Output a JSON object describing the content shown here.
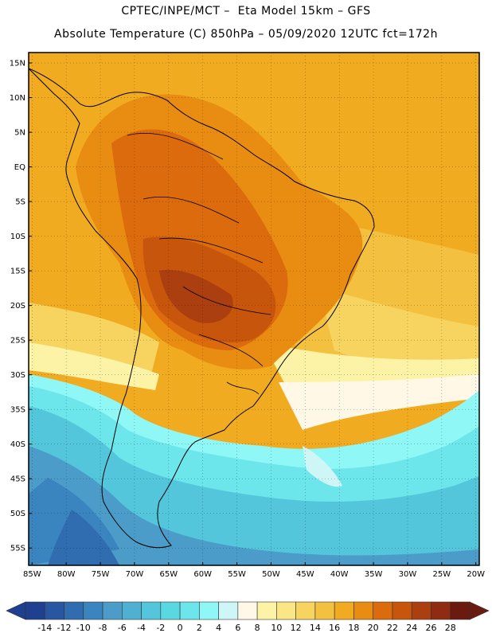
{
  "header": {
    "line1": "CPTEC/INPE/MCT –  Eta Model 15km – GFS",
    "line2": "Absolute Temperature (C) 850hPa – 05/09/2020 12UTC fct=172h"
  },
  "map": {
    "lat_labels": [
      "15N",
      "10N",
      "5N",
      "EQ",
      "5S",
      "10S",
      "15S",
      "20S",
      "25S",
      "30S",
      "35S",
      "40S",
      "45S",
      "50S",
      "55S"
    ],
    "lon_labels": [
      "85W",
      "80W",
      "75W",
      "70W",
      "65W",
      "60W",
      "55W",
      "50W",
      "45W",
      "40W",
      "35W",
      "30W",
      "25W",
      "20W"
    ],
    "lat_values": [
      15,
      10,
      5,
      0,
      -5,
      -10,
      -15,
      -20,
      -25,
      -30,
      -35,
      -40,
      -45,
      -50,
      -55
    ],
    "lon_values": [
      -85,
      -80,
      -75,
      -70,
      -65,
      -60,
      -55,
      -50,
      -45,
      -40,
      -35,
      -30,
      -25,
      -20
    ],
    "extent": {
      "lon_min": -85.5,
      "lon_max": -19.5,
      "lat_min": -57.5,
      "lat_max": 16.5
    },
    "field": "temperature-850hPa"
  },
  "colorbar": {
    "labels": [
      "-14",
      "-12",
      "-10",
      "-8",
      "-6",
      "-4",
      "-2",
      "0",
      "2",
      "4",
      "6",
      "8",
      "10",
      "12",
      "14",
      "16",
      "18",
      "20",
      "22",
      "24",
      "26",
      "28"
    ],
    "colors": [
      "#1f3f8f",
      "#2856a0",
      "#2f6cb0",
      "#3a84bf",
      "#4b9cc8",
      "#4fb1d2",
      "#53c6dc",
      "#5ad8e2",
      "#6ce6ea",
      "#8ff7f6",
      "#cff6f7",
      "#fff8e6",
      "#fdf3a6",
      "#fbe685",
      "#f7d45f",
      "#f3c040",
      "#f0ab21",
      "#e98c12",
      "#db6b0c",
      "#c7550c",
      "#ab3f0f",
      "#8f2b10",
      "#6b1a0f"
    ]
  }
}
